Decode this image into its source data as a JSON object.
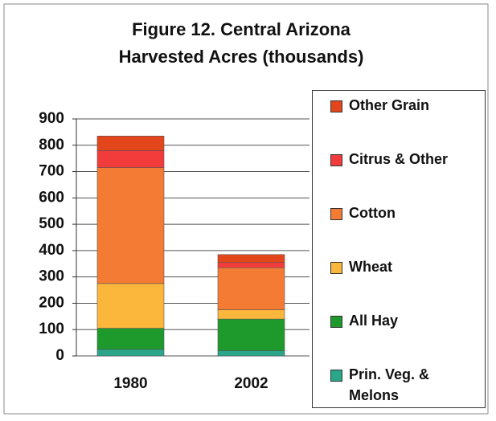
{
  "chart_data": {
    "type": "stacked_bar",
    "title": "Figure 12. Central Arizona Harvested Acres (thousands)",
    "categories": [
      "1980",
      "2002"
    ],
    "series": [
      {
        "name": "Prin. Veg. & Melons",
        "color": "#2aa68a",
        "values": [
          25,
          20
        ]
      },
      {
        "name": "All Hay",
        "color": "#1e9a2c",
        "values": [
          80,
          120
        ]
      },
      {
        "name": "Wheat",
        "color": "#fbb73c",
        "values": [
          170,
          35
        ]
      },
      {
        "name": "Cotton",
        "color": "#f47b34",
        "values": [
          440,
          160
        ]
      },
      {
        "name": "Citrus & Other",
        "color": "#f23c3c",
        "values": [
          65,
          20
        ]
      },
      {
        "name": "Other Grain",
        "color": "#e4461c",
        "values": [
          55,
          30
        ]
      }
    ],
    "ylim": [
      0,
      900
    ],
    "yticks": [
      0,
      100,
      200,
      300,
      400,
      500,
      600,
      700,
      800,
      900
    ],
    "grid": true,
    "legend": "right"
  }
}
